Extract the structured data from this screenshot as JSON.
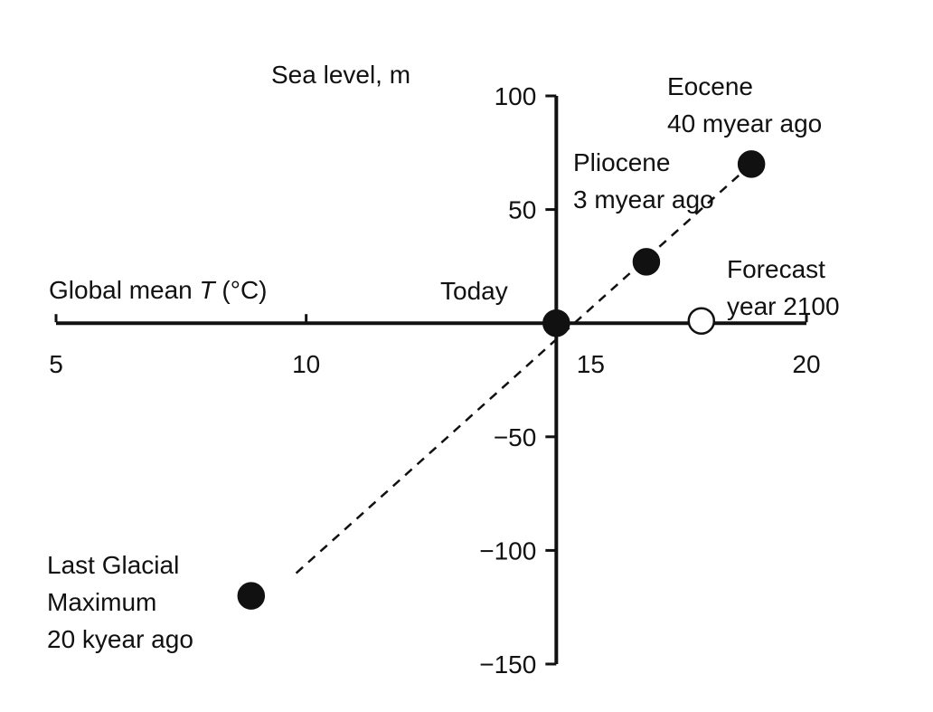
{
  "chart_data": {
    "type": "scatter",
    "xlabel": {
      "prefix": "Global mean ",
      "symbol": "T",
      "suffix": " (°C)"
    },
    "ylabel": "Sea level, m",
    "xlim": [
      5,
      20
    ],
    "ylim": [
      -150,
      100
    ],
    "x_ticks": [
      5,
      10,
      15,
      20
    ],
    "y_ticks": [
      100,
      50,
      -50,
      -100,
      -150
    ],
    "y_tick_labels": [
      "100",
      "50",
      "−50",
      "−100",
      "−150"
    ],
    "grid": false,
    "trend_line": {
      "style": "dashed",
      "from": [
        9.8,
        -110
      ],
      "to": [
        18.9,
        70
      ]
    },
    "points": [
      {
        "x": 18.9,
        "y": 70,
        "filled": true,
        "label_lines": [
          "Eocene",
          "40 myear ago"
        ]
      },
      {
        "x": 16.8,
        "y": 27,
        "filled": true,
        "label_lines": [
          "Pliocene",
          "3 myear ago"
        ]
      },
      {
        "x": 15.0,
        "y": 0,
        "filled": true,
        "label_lines": [
          "Today"
        ]
      },
      {
        "x": 17.9,
        "y": 1,
        "filled": false,
        "label_lines": [
          "Forecast",
          "year 2100"
        ]
      },
      {
        "x": 8.9,
        "y": -120,
        "filled": true,
        "label_lines": [
          "Last Glacial",
          "Maximum",
          "20 kyear ago"
        ]
      }
    ]
  },
  "colors": {
    "ink": "#111111",
    "background": "#ffffff",
    "open_marker_fill": "#ffffff"
  }
}
